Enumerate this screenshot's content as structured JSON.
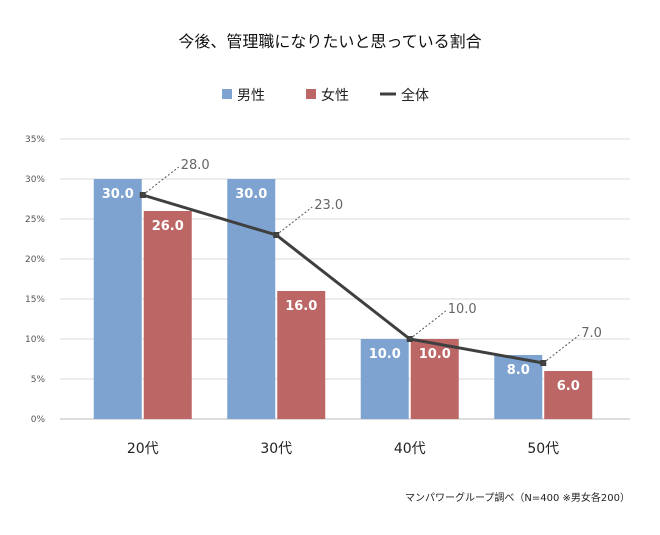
{
  "chart_data": {
    "type": "bar",
    "title": "今後、管理職になりたいと思っている割合",
    "categories": [
      "20代",
      "30代",
      "40代",
      "50代"
    ],
    "series": [
      {
        "name": "男性",
        "type": "bar",
        "color": "#7fa3d1",
        "values": [
          30.0,
          30.0,
          10.0,
          8.0
        ]
      },
      {
        "name": "女性",
        "type": "bar",
        "color": "#bc6666",
        "values": [
          26.0,
          16.0,
          10.0,
          6.0
        ]
      },
      {
        "name": "全体",
        "type": "line",
        "color": "#3f3f3f",
        "values": [
          28.0,
          23.0,
          10.0,
          7.0
        ]
      }
    ],
    "ylim": [
      0,
      35
    ],
    "yticks": [
      "0%",
      "5%",
      "10%",
      "15%",
      "20%",
      "25%",
      "30%",
      "35%"
    ],
    "grid": true,
    "legend": "top",
    "note": "マンパワーグループ調べ（N=400 ※男女各200）"
  }
}
